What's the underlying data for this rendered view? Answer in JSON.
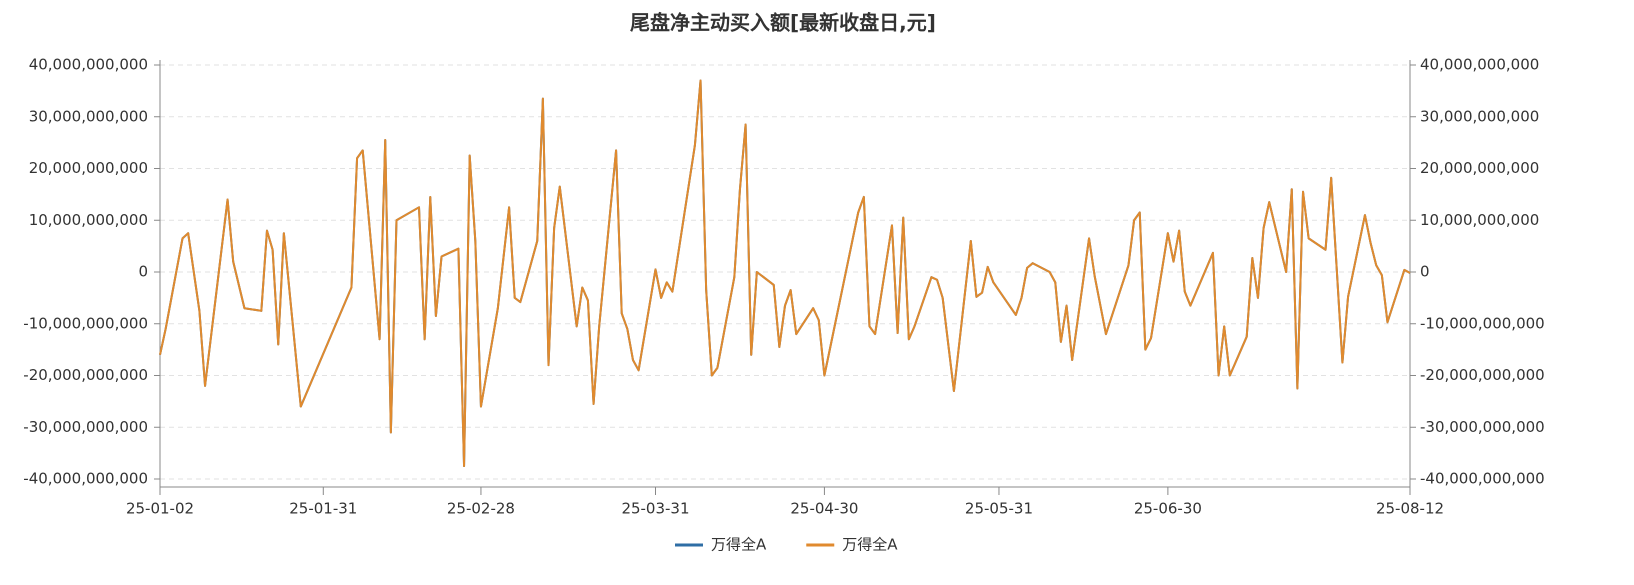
{
  "chart_data": {
    "type": "line",
    "title": "尾盘净主动买入额[最新收盘日,元]",
    "x": [
      "25-01-02",
      "25-01-03",
      "25-01-06",
      "25-01-07",
      "25-01-09",
      "25-01-10",
      "25-01-14",
      "25-01-15",
      "25-01-17",
      "25-01-20",
      "25-01-21",
      "25-01-22",
      "25-01-23",
      "25-01-24",
      "25-01-27",
      "25-02-05",
      "25-02-06",
      "25-02-07",
      "25-02-10",
      "25-02-11",
      "25-02-12",
      "25-02-13",
      "25-02-17",
      "25-02-18",
      "25-02-19",
      "25-02-20",
      "25-02-21",
      "25-02-24",
      "25-02-25",
      "25-02-26",
      "25-02-27",
      "25-02-28",
      "25-03-03",
      "25-03-05",
      "25-03-06",
      "25-03-07",
      "25-03-10",
      "25-03-11",
      "25-03-12",
      "25-03-13",
      "25-03-14",
      "25-03-17",
      "25-03-18",
      "25-03-19",
      "25-03-20",
      "25-03-21",
      "25-03-24",
      "25-03-25",
      "25-03-26",
      "25-03-27",
      "25-03-28",
      "25-03-31",
      "25-04-01",
      "25-04-02",
      "25-04-03",
      "25-04-07",
      "25-04-08",
      "25-04-09",
      "25-04-10",
      "25-04-11",
      "25-04-14",
      "25-04-15",
      "25-04-16",
      "25-04-17",
      "25-04-18",
      "25-04-21",
      "25-04-22",
      "25-04-23",
      "25-04-24",
      "25-04-25",
      "25-04-28",
      "25-04-29",
      "25-04-30",
      "25-05-06",
      "25-05-07",
      "25-05-08",
      "25-05-09",
      "25-05-12",
      "25-05-13",
      "25-05-14",
      "25-05-15",
      "25-05-16",
      "25-05-19",
      "25-05-20",
      "25-05-21",
      "25-05-22",
      "25-05-23",
      "25-05-26",
      "25-05-27",
      "25-05-28",
      "25-05-29",
      "25-05-30",
      "25-06-03",
      "25-06-04",
      "25-06-05",
      "25-06-06",
      "25-06-09",
      "25-06-10",
      "25-06-11",
      "25-06-12",
      "25-06-13",
      "25-06-16",
      "25-06-17",
      "25-06-19",
      "25-06-23",
      "25-06-24",
      "25-06-25",
      "25-06-26",
      "25-06-27",
      "25-06-30",
      "25-07-01",
      "25-07-02",
      "25-07-03",
      "25-07-04",
      "25-07-08",
      "25-07-09",
      "25-07-10",
      "25-07-11",
      "25-07-14",
      "25-07-15",
      "25-07-16",
      "25-07-17",
      "25-07-18",
      "25-07-21",
      "25-07-22",
      "25-07-23",
      "25-07-24",
      "25-07-25",
      "25-07-28",
      "25-07-29",
      "25-07-31",
      "25-08-01",
      "25-08-04",
      "25-08-05",
      "25-08-06",
      "25-08-07",
      "25-08-08",
      "25-08-11",
      "25-08-12"
    ],
    "series": [
      {
        "name": "万得全A",
        "color": "#2f6ea5",
        "values": [
          -16000000000.0,
          -11000000000.0,
          6500000000.0,
          7500000000.0,
          -7500000000.0,
          -22000000000.0,
          14000000000.0,
          2000000000.0,
          -7000000000.0,
          -7500000000.0,
          8000000000.0,
          4300000000.0,
          -14000000000.0,
          7500000000.0,
          -26000000000.0,
          -3000000000.0,
          22000000000.0,
          23500000000.0,
          -13000000000.0,
          25500000000.0,
          -31000000000.0,
          10000000000.0,
          12500000000.0,
          -13000000000.0,
          14500000000.0,
          -8500000000.0,
          3000000000.0,
          4500000000.0,
          -37500000000.0,
          22500000000.0,
          6000000000.0,
          -26000000000.0,
          -7000000000.0,
          12500000000.0,
          -5000000000.0,
          -5800000000.0,
          6000000000.0,
          33500000000.0,
          -18000000000.0,
          8500000000.0,
          16500000000.0,
          -10500000000.0,
          -3000000000.0,
          -5500000000.0,
          -25500000000.0,
          -10500000000.0,
          23500000000.0,
          -8000000000.0,
          -11000000000.0,
          -17000000000.0,
          -19000000000.0,
          500000000.0,
          -5000000000.0,
          -2000000000.0,
          -3800000000.0,
          24500000000.0,
          37000000000.0,
          -3500000000.0,
          -20000000000.0,
          -18500000000.0,
          -1000000000.0,
          16000000000.0,
          28500000000.0,
          -16000000000.0,
          0,
          -2500000000.0,
          -14500000000.0,
          -6500000000.0,
          -3500000000.0,
          -12000000000.0,
          -7000000000.0,
          -9300000000.0,
          -20000000000.0,
          11500000000.0,
          14500000000.0,
          -10500000000.0,
          -12000000000.0,
          9000000000.0,
          -11800000000.0,
          10500000000.0,
          -13000000000.0,
          -10500000000.0,
          -1000000000.0,
          -1500000000.0,
          -5000000000.0,
          -14000000000.0,
          -23000000000.0,
          6000000000.0,
          -4800000000.0,
          -4000000000.0,
          1000000000.0,
          -2000000000.0,
          -8300000000.0,
          -5000000000.0,
          800000000.0,
          1700000000.0,
          0,
          -2000000000.0,
          -13500000000.0,
          -6500000000.0,
          -17000000000.0,
          6500000000.0,
          -800000000.0,
          -12000000000.0,
          1300000000.0,
          10000000000.0,
          11500000000.0,
          -15000000000.0,
          -12800000000.0,
          7500000000.0,
          2000000000.0,
          8000000000.0,
          -3800000000.0,
          -6500000000.0,
          3700000000.0,
          -20000000000.0,
          -10500000000.0,
          -20000000000.0,
          -12500000000.0,
          2700000000.0,
          -5000000000.0,
          8500000000.0,
          13500000000.0,
          0,
          16000000000.0,
          -22500000000.0,
          15500000000.0,
          6500000000.0,
          4300000000.0,
          18200000000.0,
          -17500000000.0,
          -4800000000.0,
          11000000000.0,
          5600000000.0,
          1300000000.0,
          -600000000.0,
          -9700000000.0,
          400000000.0,
          -200000000.0
        ]
      },
      {
        "name": "万得全A",
        "color": "#e08a2e",
        "values": [
          -16000000000.0,
          -11000000000.0,
          6500000000.0,
          7500000000.0,
          -7500000000.0,
          -22000000000.0,
          14000000000.0,
          2000000000.0,
          -7000000000.0,
          -7500000000.0,
          8000000000.0,
          4300000000.0,
          -14000000000.0,
          7500000000.0,
          -26000000000.0,
          -3000000000.0,
          22000000000.0,
          23500000000.0,
          -13000000000.0,
          25500000000.0,
          -31000000000.0,
          10000000000.0,
          12500000000.0,
          -13000000000.0,
          14500000000.0,
          -8500000000.0,
          3000000000.0,
          4500000000.0,
          -37500000000.0,
          22500000000.0,
          6000000000.0,
          -26000000000.0,
          -7000000000.0,
          12500000000.0,
          -5000000000.0,
          -5800000000.0,
          6000000000.0,
          33500000000.0,
          -18000000000.0,
          8500000000.0,
          16500000000.0,
          -10500000000.0,
          -3000000000.0,
          -5500000000.0,
          -25500000000.0,
          -10500000000.0,
          23500000000.0,
          -8000000000.0,
          -11000000000.0,
          -17000000000.0,
          -19000000000.0,
          500000000.0,
          -5000000000.0,
          -2000000000.0,
          -3800000000.0,
          24500000000.0,
          37000000000.0,
          -3500000000.0,
          -20000000000.0,
          -18500000000.0,
          -1000000000.0,
          16000000000.0,
          28500000000.0,
          -16000000000.0,
          0,
          -2500000000.0,
          -14500000000.0,
          -6500000000.0,
          -3500000000.0,
          -12000000000.0,
          -7000000000.0,
          -9300000000.0,
          -20000000000.0,
          11500000000.0,
          14500000000.0,
          -10500000000.0,
          -12000000000.0,
          9000000000.0,
          -11800000000.0,
          10500000000.0,
          -13000000000.0,
          -10500000000.0,
          -1000000000.0,
          -1500000000.0,
          -5000000000.0,
          -14000000000.0,
          -23000000000.0,
          6000000000.0,
          -4800000000.0,
          -4000000000.0,
          1000000000.0,
          -2000000000.0,
          -8300000000.0,
          -5000000000.0,
          800000000.0,
          1700000000.0,
          0,
          -2000000000.0,
          -13500000000.0,
          -6500000000.0,
          -17000000000.0,
          6500000000.0,
          -800000000.0,
          -12000000000.0,
          1300000000.0,
          10000000000.0,
          11500000000.0,
          -15000000000.0,
          -12800000000.0,
          7500000000.0,
          2000000000.0,
          8000000000.0,
          -3800000000.0,
          -6500000000.0,
          3700000000.0,
          -20000000000.0,
          -10500000000.0,
          -20000000000.0,
          -12500000000.0,
          2700000000.0,
          -5000000000.0,
          8500000000.0,
          13500000000.0,
          0,
          16000000000.0,
          -22500000000.0,
          15500000000.0,
          6500000000.0,
          4300000000.0,
          18200000000.0,
          -17500000000.0,
          -4800000000.0,
          11000000000.0,
          5600000000.0,
          1300000000.0,
          -600000000.0,
          -9700000000.0,
          400000000.0,
          -200000000.0
        ]
      }
    ],
    "xlim": [
      "25-01-02",
      "25-08-12"
    ],
    "xticks": [
      "25-01-02",
      "25-01-31",
      "25-02-28",
      "25-03-31",
      "25-04-30",
      "25-05-31",
      "25-06-30",
      "25-08-12"
    ],
    "ylim": [
      -40000000000,
      40000000000
    ],
    "yticks": [
      {
        "value": -40000000000,
        "label": "-40,000,000,000"
      },
      {
        "value": -30000000000,
        "label": "-30,000,000,000"
      },
      {
        "value": -20000000000,
        "label": "-20,000,000,000"
      },
      {
        "value": -10000000000,
        "label": "-10,000,000,000"
      },
      0,
      {
        "value": 10000000000,
        "label": "10,000,000,000"
      },
      {
        "value": 20000000000,
        "label": "20,000,000,000"
      },
      {
        "value": 30000000000,
        "label": "30,000,000,000"
      },
      {
        "value": 40000000000,
        "label": "40,000,000,000"
      }
    ],
    "y2lim": [
      -40000000000,
      40000000000
    ],
    "y2ticks": [
      {
        "value": -40000000000,
        "label": "-40,000,000,000"
      },
      {
        "value": -30000000000,
        "label": "-30,000,000,000"
      },
      {
        "value": -20000000000,
        "label": "-20,000,000,000"
      },
      {
        "value": -10000000000,
        "label": "-10,000,000,000"
      },
      0,
      {
        "value": 10000000000,
        "label": "10,000,000,000"
      },
      {
        "value": 20000000000,
        "label": "20,000,000,000"
      },
      {
        "value": 30000000000,
        "label": "30,000,000,000"
      },
      {
        "value": 40000000000,
        "label": "40,000,000,000"
      }
    ],
    "grid": true
  }
}
